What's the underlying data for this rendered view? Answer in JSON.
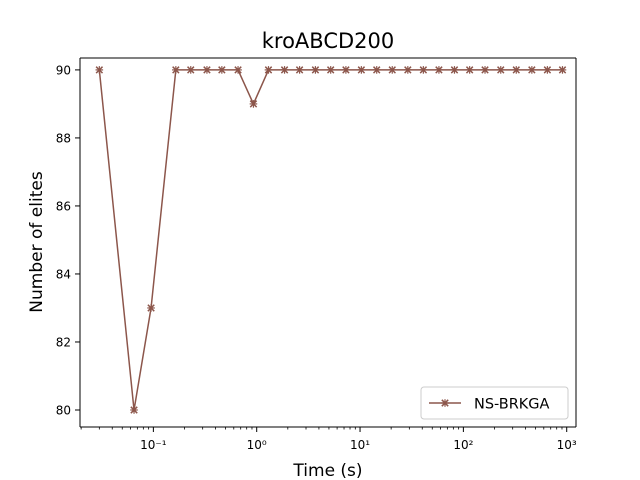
{
  "chart_data": {
    "type": "line",
    "title": "kroABCD200",
    "xlabel": "Time (s)",
    "ylabel": "Number of elites",
    "xscale": "log",
    "xlim": [
      0.0195,
      1230
    ],
    "ylim": [
      79.5,
      90.35
    ],
    "xticks": [
      "10⁻¹",
      "10⁰",
      "10¹",
      "10²",
      "10³"
    ],
    "yticks": [
      80,
      82,
      84,
      86,
      88,
      90
    ],
    "grid": false,
    "legend_position": "lower right",
    "series": [
      {
        "name": "NS-BRKGA",
        "color": "#8c564b",
        "marker": "x",
        "x": [
          0.03,
          0.065,
          0.095,
          0.165,
          0.23,
          0.33,
          0.46,
          0.66,
          0.93,
          1.3,
          1.86,
          2.6,
          3.7,
          5.2,
          7.3,
          10.3,
          14.5,
          20.5,
          29,
          41,
          58,
          82,
          115,
          162,
          230,
          325,
          460,
          650,
          910
        ],
        "y": [
          90,
          80,
          83,
          90,
          90,
          90,
          90,
          90,
          89,
          90,
          90,
          90,
          90,
          90,
          90,
          90,
          90,
          90,
          90,
          90,
          90,
          90,
          90,
          90,
          90,
          90,
          90,
          90,
          90
        ]
      }
    ]
  }
}
